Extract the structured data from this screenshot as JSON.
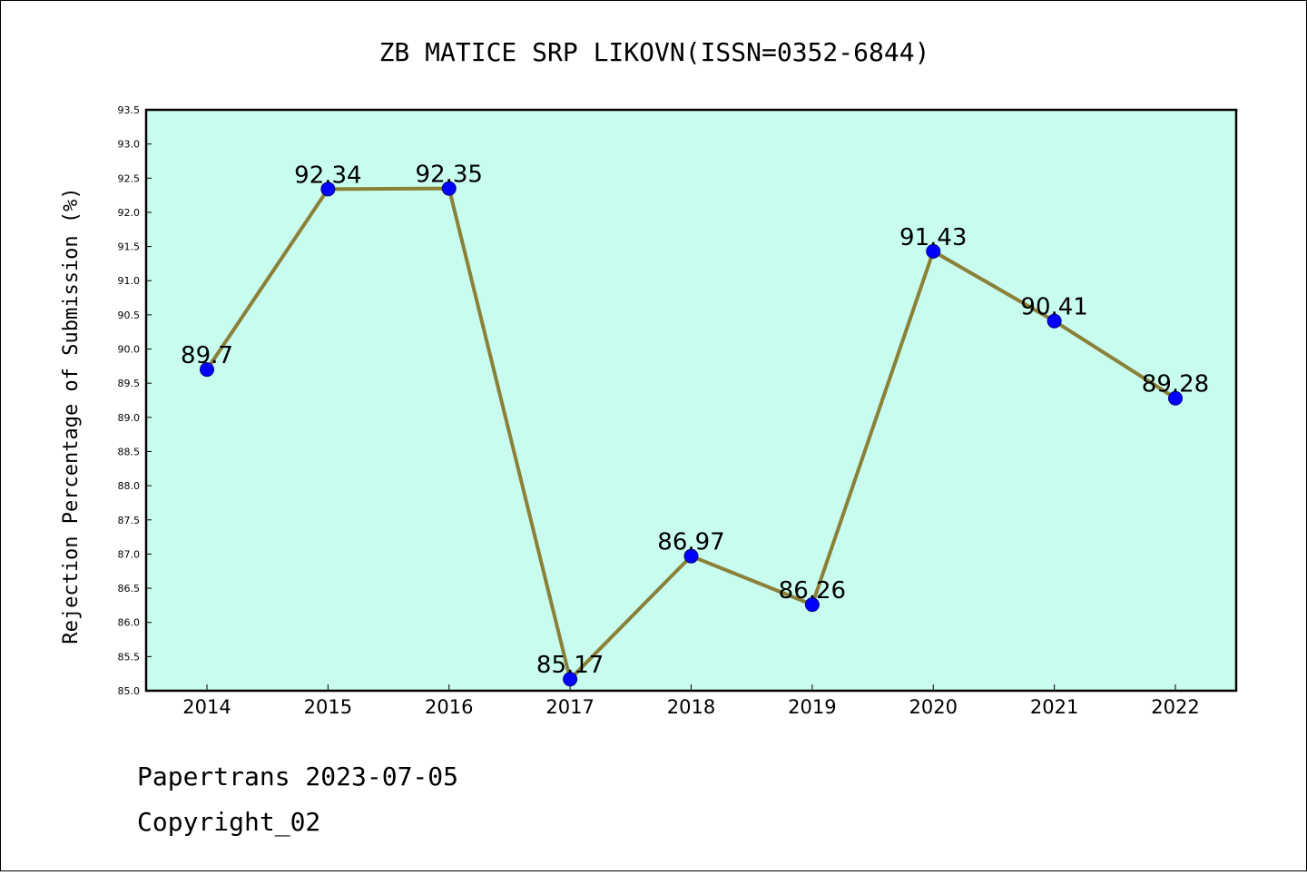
{
  "chart_data": {
    "type": "line",
    "title": "ZB MATICE SRP LIKOVN(ISSN=0352-6844)",
    "xlabel": "",
    "ylabel": "Rejection Percentage of Submission (%)",
    "categories": [
      "2014",
      "2015",
      "2016",
      "2017",
      "2018",
      "2019",
      "2020",
      "2021",
      "2022"
    ],
    "values": [
      89.7,
      92.34,
      92.35,
      85.17,
      86.97,
      86.26,
      91.43,
      90.41,
      89.28
    ],
    "data_labels": [
      "89.7",
      "92.34",
      "92.35",
      "85.17",
      "86.97",
      "86.26",
      "91.43",
      "90.41",
      "89.28"
    ],
    "ylim": [
      85.0,
      93.5
    ],
    "yticks": [
      "85.0",
      "85.5",
      "86.0",
      "86.5",
      "87.0",
      "87.5",
      "88.0",
      "88.5",
      "89.0",
      "89.5",
      "90.0",
      "90.5",
      "91.0",
      "91.5",
      "92.0",
      "92.5",
      "93.0",
      "93.5"
    ],
    "grid": false,
    "colors": {
      "plot_background": "#c8fcee",
      "line": "#8b8038",
      "marker": "#0000ff"
    }
  },
  "footer": {
    "line1": "Papertrans 2023-07-05",
    "line2": "Copyright_02"
  }
}
